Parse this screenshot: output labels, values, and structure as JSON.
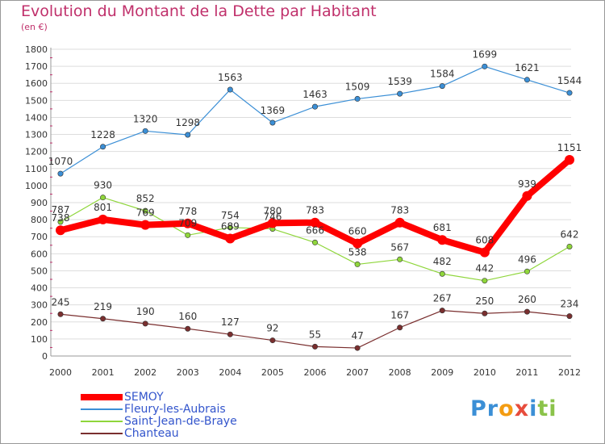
{
  "chart_data": {
    "type": "line",
    "title": "Evolution du Montant de la Dette par Habitant",
    "subtitle": "(en €)",
    "x": [
      "2000",
      "2001",
      "2002",
      "2003",
      "2004",
      "2005",
      "2006",
      "2007",
      "2008",
      "2009",
      "2010",
      "2011",
      "2012"
    ],
    "ylim": [
      0,
      1800
    ],
    "yticks": [
      0,
      100,
      200,
      300,
      400,
      500,
      600,
      700,
      800,
      900,
      1000,
      1100,
      1200,
      1300,
      1400,
      1500,
      1600,
      1700,
      1800
    ],
    "grid": true,
    "legend_position": "bottom-left",
    "series": [
      {
        "name": "SEMOY",
        "color": "#ff0000",
        "values": [
          738,
          801,
          769,
          778,
          689,
          780,
          783,
          660,
          783,
          681,
          608,
          939,
          1151
        ]
      },
      {
        "name": "Fleury-les-Aubrais",
        "color": "#3b8fd6",
        "values": [
          1070,
          1228,
          1320,
          1298,
          1563,
          1369,
          1463,
          1509,
          1539,
          1584,
          1699,
          1621,
          1544
        ]
      },
      {
        "name": "Saint-Jean-de-Braye",
        "color": "#8fd63b",
        "values": [
          787,
          930,
          852,
          709,
          754,
          746,
          666,
          538,
          567,
          482,
          442,
          496,
          642
        ]
      },
      {
        "name": "Chanteau",
        "color": "#7a2f2f",
        "values": [
          245,
          219,
          190,
          160,
          127,
          92,
          55,
          47,
          167,
          267,
          250,
          260,
          234
        ]
      }
    ]
  },
  "logo": {
    "text": "Proxiti",
    "letters": [
      "P",
      "r",
      "o",
      "x",
      "i",
      "t",
      "i"
    ],
    "colors": [
      "#3b8fd6",
      "#3b8fd6",
      "#f39c12",
      "#e74c3c",
      "#3b8fd6",
      "#8bc34a",
      "#8bc34a"
    ]
  }
}
